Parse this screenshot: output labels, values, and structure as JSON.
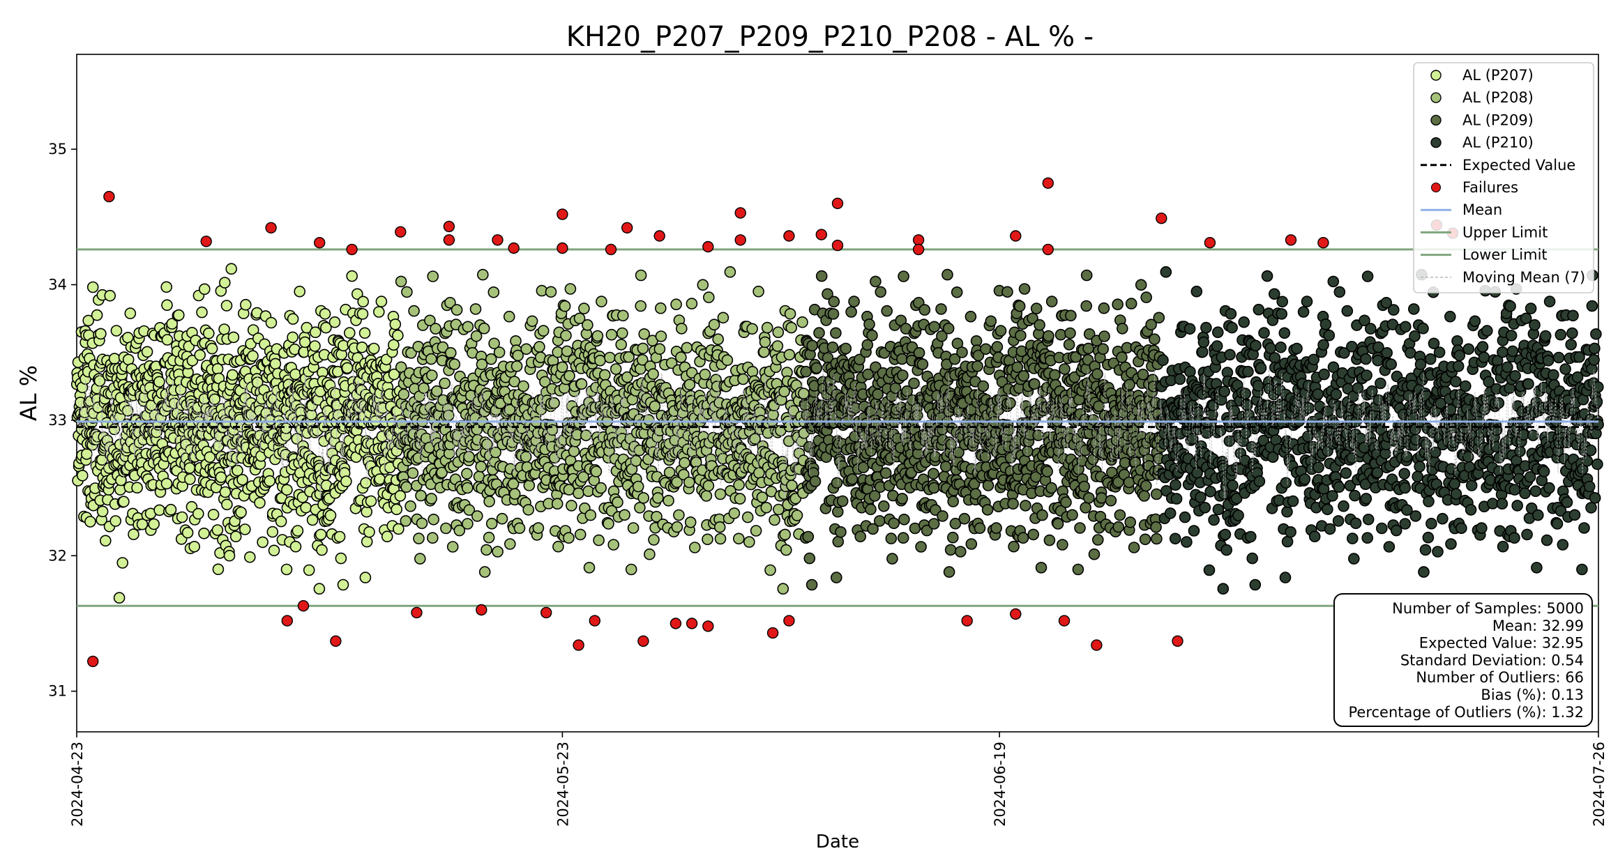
{
  "chart_data": {
    "type": "scatter",
    "title": "KH20_P207_P209_P210_P208 - AL % -",
    "xlabel": "Date",
    "ylabel": "AL %",
    "x_range": [
      "2024-04-23",
      "2024-07-26"
    ],
    "x_ticks": [
      "2024-04-23",
      "2024-05-23",
      "2024-06-19",
      "2024-07-26"
    ],
    "ylim": [
      30.7,
      35.7
    ],
    "y_ticks": [
      31,
      32,
      33,
      34,
      35
    ],
    "grid": false,
    "expected_value": 32.95,
    "mean": 32.99,
    "upper_limit": 34.26,
    "lower_limit": 31.63,
    "series": [
      {
        "name": "AL (P207)",
        "color": "#d2f095",
        "x_range": [
          "2024-04-23",
          "2024-05-13"
        ],
        "approx_points": 1250,
        "spread_center": 32.99
      },
      {
        "name": "AL (P208)",
        "color": "#a6c27a",
        "x_range": [
          "2024-05-13",
          "2024-06-07"
        ],
        "approx_points": 1250,
        "spread_center": 32.99
      },
      {
        "name": "AL (P209)",
        "color": "#5b6e44",
        "x_range": [
          "2024-06-07",
          "2024-06-29"
        ],
        "approx_points": 1250,
        "spread_center": 32.99
      },
      {
        "name": "AL (P210)",
        "color": "#2c3e2f",
        "x_range": [
          "2024-06-29",
          "2024-07-26"
        ],
        "approx_points": 1250,
        "spread_center": 32.99
      }
    ],
    "failures": [
      {
        "x": "2024-04-24",
        "y": 31.22
      },
      {
        "x": "2024-04-25",
        "y": 34.65
      },
      {
        "x": "2024-05-01",
        "y": 34.32
      },
      {
        "x": "2024-05-05",
        "y": 34.42
      },
      {
        "x": "2024-05-06",
        "y": 31.52
      },
      {
        "x": "2024-05-07",
        "y": 31.63
      },
      {
        "x": "2024-05-08",
        "y": 34.31
      },
      {
        "x": "2024-05-09",
        "y": 31.37
      },
      {
        "x": "2024-05-10",
        "y": 34.26
      },
      {
        "x": "2024-05-13",
        "y": 34.39
      },
      {
        "x": "2024-05-14",
        "y": 31.58
      },
      {
        "x": "2024-05-16",
        "y": 34.43
      },
      {
        "x": "2024-05-16",
        "y": 34.33
      },
      {
        "x": "2024-05-18",
        "y": 31.6
      },
      {
        "x": "2024-05-19",
        "y": 34.33
      },
      {
        "x": "2024-05-20",
        "y": 34.27
      },
      {
        "x": "2024-05-22",
        "y": 31.58
      },
      {
        "x": "2024-05-23",
        "y": 34.52
      },
      {
        "x": "2024-05-23",
        "y": 34.27
      },
      {
        "x": "2024-05-24",
        "y": 31.34
      },
      {
        "x": "2024-05-25",
        "y": 31.52
      },
      {
        "x": "2024-05-26",
        "y": 34.26
      },
      {
        "x": "2024-05-27",
        "y": 34.42
      },
      {
        "x": "2024-05-28",
        "y": 31.37
      },
      {
        "x": "2024-05-29",
        "y": 34.36
      },
      {
        "x": "2024-05-30",
        "y": 31.5
      },
      {
        "x": "2024-05-31",
        "y": 31.5
      },
      {
        "x": "2024-06-01",
        "y": 31.48
      },
      {
        "x": "2024-06-01",
        "y": 34.28
      },
      {
        "x": "2024-06-03",
        "y": 34.33
      },
      {
        "x": "2024-06-03",
        "y": 34.53
      },
      {
        "x": "2024-06-05",
        "y": 31.43
      },
      {
        "x": "2024-06-06",
        "y": 31.52
      },
      {
        "x": "2024-06-06",
        "y": 34.36
      },
      {
        "x": "2024-06-08",
        "y": 34.37
      },
      {
        "x": "2024-06-09",
        "y": 34.29
      },
      {
        "x": "2024-06-09",
        "y": 34.6
      },
      {
        "x": "2024-06-14",
        "y": 34.33
      },
      {
        "x": "2024-06-14",
        "y": 34.26
      },
      {
        "x": "2024-06-17",
        "y": 31.52
      },
      {
        "x": "2024-06-20",
        "y": 34.36
      },
      {
        "x": "2024-06-20",
        "y": 31.57
      },
      {
        "x": "2024-06-22",
        "y": 34.75
      },
      {
        "x": "2024-06-22",
        "y": 34.26
      },
      {
        "x": "2024-06-23",
        "y": 31.52
      },
      {
        "x": "2024-06-25",
        "y": 31.34
      },
      {
        "x": "2024-06-29",
        "y": 34.49
      },
      {
        "x": "2024-06-30",
        "y": 31.37
      },
      {
        "x": "2024-07-02",
        "y": 34.31
      },
      {
        "x": "2024-07-07",
        "y": 34.33
      },
      {
        "x": "2024-07-09",
        "y": 34.31
      },
      {
        "x": "2024-07-16",
        "y": 34.44
      },
      {
        "x": "2024-07-17",
        "y": 34.38
      }
    ],
    "legend": {
      "position": "top-right",
      "entries": [
        {
          "label": "AL (P207)",
          "kind": "marker",
          "color": "#d2f095"
        },
        {
          "label": "AL (P208)",
          "kind": "marker",
          "color": "#a6c27a"
        },
        {
          "label": "AL (P209)",
          "kind": "marker",
          "color": "#5b6e44"
        },
        {
          "label": "AL (P210)",
          "kind": "marker",
          "color": "#2c3e2f"
        },
        {
          "label": "Expected Value",
          "kind": "dashed",
          "color": "#000000"
        },
        {
          "label": "Failures",
          "kind": "failure",
          "color": "#e01818"
        },
        {
          "label": "Mean",
          "kind": "line",
          "color": "#8fb0e6"
        },
        {
          "label": "Upper Limit",
          "kind": "line",
          "color": "#7fa57c"
        },
        {
          "label": "Lower Limit",
          "kind": "line",
          "color": "#7fa57c"
        },
        {
          "label": "Moving Mean (7)",
          "kind": "thin-dashed",
          "color": "#b0b0b0"
        }
      ]
    },
    "stats": [
      "Number of Samples: 5000",
      "Mean: 32.99",
      "Expected Value: 32.95",
      "Standard Deviation: 0.54",
      "Number of Outliers: 66",
      "Bias (%): 0.13",
      "Percentage of Outliers (%): 1.32"
    ]
  }
}
